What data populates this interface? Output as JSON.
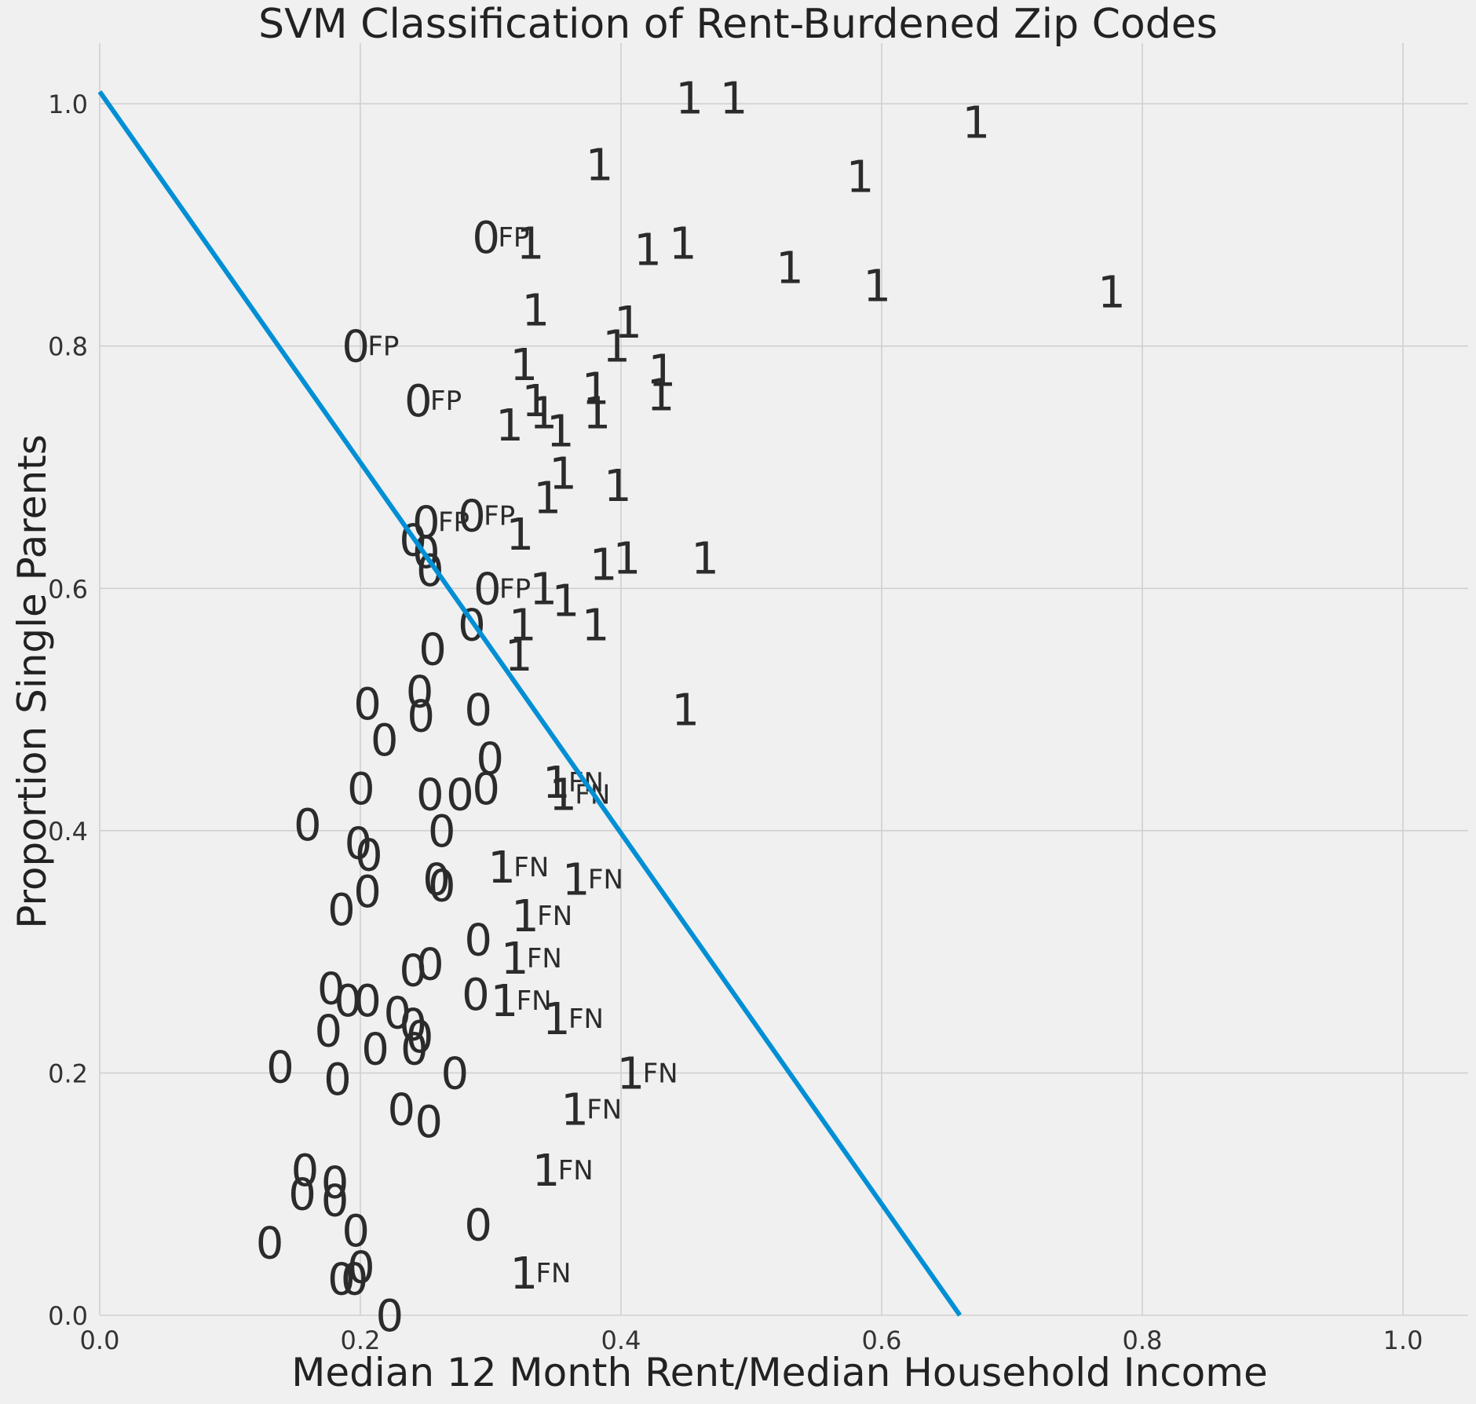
{
  "chart_data": {
    "type": "scatter",
    "title": "SVM Classification of Rent-Burdened Zip Codes",
    "xlabel": "Median 12 Month Rent/Median Household Income",
    "ylabel": "Proportion Single Parents",
    "xlim": [
      0.0,
      1.05
    ],
    "ylim": [
      0.0,
      1.05
    ],
    "xticks": [
      "0.0",
      "0.2",
      "0.4",
      "0.6",
      "0.8",
      "1.0"
    ],
    "yticks": [
      "0.0",
      "0.2",
      "0.4",
      "0.6",
      "0.8",
      "1.0"
    ],
    "grid": true,
    "line_color": "#008fd5",
    "decision_boundary": {
      "x": [
        0.0,
        0.66
      ],
      "y": [
        1.01,
        0.0
      ]
    },
    "points": [
      {
        "x": 0.452,
        "y": 1.005,
        "label": "1",
        "flag": ""
      },
      {
        "x": 0.486,
        "y": 1.005,
        "label": "1",
        "flag": ""
      },
      {
        "x": 0.672,
        "y": 0.985,
        "label": "1",
        "flag": ""
      },
      {
        "x": 0.383,
        "y": 0.95,
        "label": "1",
        "flag": ""
      },
      {
        "x": 0.583,
        "y": 0.94,
        "label": "1",
        "flag": ""
      },
      {
        "x": 0.296,
        "y": 0.89,
        "label": "0",
        "flag": "FP"
      },
      {
        "x": 0.33,
        "y": 0.885,
        "label": "1",
        "flag": ""
      },
      {
        "x": 0.42,
        "y": 0.88,
        "label": "1",
        "flag": ""
      },
      {
        "x": 0.447,
        "y": 0.885,
        "label": "1",
        "flag": ""
      },
      {
        "x": 0.529,
        "y": 0.865,
        "label": "1",
        "flag": ""
      },
      {
        "x": 0.596,
        "y": 0.85,
        "label": "1",
        "flag": ""
      },
      {
        "x": 0.776,
        "y": 0.845,
        "label": "1",
        "flag": ""
      },
      {
        "x": 0.334,
        "y": 0.83,
        "label": "1",
        "flag": ""
      },
      {
        "x": 0.405,
        "y": 0.82,
        "label": "1",
        "flag": ""
      },
      {
        "x": 0.196,
        "y": 0.8,
        "label": "0",
        "flag": "FP"
      },
      {
        "x": 0.396,
        "y": 0.8,
        "label": "1",
        "flag": ""
      },
      {
        "x": 0.325,
        "y": 0.785,
        "label": "1",
        "flag": ""
      },
      {
        "x": 0.431,
        "y": 0.78,
        "label": "1",
        "flag": ""
      },
      {
        "x": 0.244,
        "y": 0.755,
        "label": "0",
        "flag": "FP"
      },
      {
        "x": 0.38,
        "y": 0.765,
        "label": "1",
        "flag": ""
      },
      {
        "x": 0.334,
        "y": 0.755,
        "label": "1",
        "flag": ""
      },
      {
        "x": 0.43,
        "y": 0.76,
        "label": "1",
        "flag": ""
      },
      {
        "x": 0.34,
        "y": 0.745,
        "label": "1",
        "flag": ""
      },
      {
        "x": 0.381,
        "y": 0.745,
        "label": "1",
        "flag": ""
      },
      {
        "x": 0.314,
        "y": 0.735,
        "label": "1",
        "flag": ""
      },
      {
        "x": 0.353,
        "y": 0.73,
        "label": "1",
        "flag": ""
      },
      {
        "x": 0.355,
        "y": 0.695,
        "label": "1",
        "flag": ""
      },
      {
        "x": 0.397,
        "y": 0.685,
        "label": "1",
        "flag": ""
      },
      {
        "x": 0.343,
        "y": 0.675,
        "label": "1",
        "flag": ""
      },
      {
        "x": 0.285,
        "y": 0.66,
        "label": "0",
        "flag": "FP"
      },
      {
        "x": 0.25,
        "y": 0.655,
        "label": "0",
        "flag": "FP"
      },
      {
        "x": 0.322,
        "y": 0.645,
        "label": "1",
        "flag": ""
      },
      {
        "x": 0.24,
        "y": 0.64,
        "label": "0",
        "flag": ""
      },
      {
        "x": 0.25,
        "y": 0.63,
        "label": "0",
        "flag": ""
      },
      {
        "x": 0.253,
        "y": 0.615,
        "label": "0",
        "flag": ""
      },
      {
        "x": 0.386,
        "y": 0.62,
        "label": "1",
        "flag": ""
      },
      {
        "x": 0.404,
        "y": 0.625,
        "label": "1",
        "flag": ""
      },
      {
        "x": 0.464,
        "y": 0.625,
        "label": "1",
        "flag": ""
      },
      {
        "x": 0.297,
        "y": 0.6,
        "label": "0",
        "flag": "FP"
      },
      {
        "x": 0.34,
        "y": 0.6,
        "label": "1",
        "flag": ""
      },
      {
        "x": 0.357,
        "y": 0.59,
        "label": "1",
        "flag": ""
      },
      {
        "x": 0.285,
        "y": 0.57,
        "label": "0",
        "flag": ""
      },
      {
        "x": 0.324,
        "y": 0.57,
        "label": "1",
        "flag": ""
      },
      {
        "x": 0.38,
        "y": 0.57,
        "label": "1",
        "flag": ""
      },
      {
        "x": 0.255,
        "y": 0.55,
        "label": "0",
        "flag": ""
      },
      {
        "x": 0.321,
        "y": 0.545,
        "label": "1",
        "flag": ""
      },
      {
        "x": 0.245,
        "y": 0.515,
        "label": "0",
        "flag": ""
      },
      {
        "x": 0.205,
        "y": 0.505,
        "label": "0",
        "flag": ""
      },
      {
        "x": 0.29,
        "y": 0.5,
        "label": "0",
        "flag": ""
      },
      {
        "x": 0.449,
        "y": 0.5,
        "label": "1",
        "flag": ""
      },
      {
        "x": 0.246,
        "y": 0.495,
        "label": "0",
        "flag": ""
      },
      {
        "x": 0.218,
        "y": 0.475,
        "label": "0",
        "flag": ""
      },
      {
        "x": 0.299,
        "y": 0.46,
        "label": "0",
        "flag": ""
      },
      {
        "x": 0.35,
        "y": 0.44,
        "label": "1",
        "flag": "FN"
      },
      {
        "x": 0.355,
        "y": 0.43,
        "label": "1",
        "flag": "FN"
      },
      {
        "x": 0.2,
        "y": 0.435,
        "label": "0",
        "flag": ""
      },
      {
        "x": 0.253,
        "y": 0.43,
        "label": "0",
        "flag": ""
      },
      {
        "x": 0.276,
        "y": 0.43,
        "label": "0",
        "flag": ""
      },
      {
        "x": 0.296,
        "y": 0.435,
        "label": "0",
        "flag": ""
      },
      {
        "x": 0.159,
        "y": 0.405,
        "label": "0",
        "flag": ""
      },
      {
        "x": 0.262,
        "y": 0.4,
        "label": "0",
        "flag": ""
      },
      {
        "x": 0.198,
        "y": 0.39,
        "label": "0",
        "flag": ""
      },
      {
        "x": 0.206,
        "y": 0.38,
        "label": "0",
        "flag": ""
      },
      {
        "x": 0.308,
        "y": 0.37,
        "label": "1",
        "flag": "FN"
      },
      {
        "x": 0.365,
        "y": 0.36,
        "label": "1",
        "flag": "FN"
      },
      {
        "x": 0.258,
        "y": 0.36,
        "label": "0",
        "flag": ""
      },
      {
        "x": 0.262,
        "y": 0.355,
        "label": "0",
        "flag": ""
      },
      {
        "x": 0.205,
        "y": 0.35,
        "label": "0",
        "flag": ""
      },
      {
        "x": 0.185,
        "y": 0.335,
        "label": "0",
        "flag": ""
      },
      {
        "x": 0.326,
        "y": 0.33,
        "label": "1",
        "flag": "FN"
      },
      {
        "x": 0.29,
        "y": 0.31,
        "label": "0",
        "flag": ""
      },
      {
        "x": 0.318,
        "y": 0.295,
        "label": "1",
        "flag": "FN"
      },
      {
        "x": 0.253,
        "y": 0.29,
        "label": "0",
        "flag": ""
      },
      {
        "x": 0.24,
        "y": 0.285,
        "label": "0",
        "flag": ""
      },
      {
        "x": 0.177,
        "y": 0.27,
        "label": "0",
        "flag": ""
      },
      {
        "x": 0.288,
        "y": 0.265,
        "label": "0",
        "flag": ""
      },
      {
        "x": 0.31,
        "y": 0.26,
        "label": "1",
        "flag": "FN"
      },
      {
        "x": 0.19,
        "y": 0.26,
        "label": "0",
        "flag": ""
      },
      {
        "x": 0.205,
        "y": 0.26,
        "label": "0",
        "flag": ""
      },
      {
        "x": 0.228,
        "y": 0.25,
        "label": "0",
        "flag": ""
      },
      {
        "x": 0.35,
        "y": 0.245,
        "label": "1",
        "flag": "FN"
      },
      {
        "x": 0.24,
        "y": 0.24,
        "label": "0",
        "flag": ""
      },
      {
        "x": 0.245,
        "y": 0.23,
        "label": "0",
        "flag": ""
      },
      {
        "x": 0.175,
        "y": 0.235,
        "label": "0",
        "flag": ""
      },
      {
        "x": 0.241,
        "y": 0.22,
        "label": "0",
        "flag": ""
      },
      {
        "x": 0.211,
        "y": 0.22,
        "label": "0",
        "flag": ""
      },
      {
        "x": 0.138,
        "y": 0.205,
        "label": "0",
        "flag": ""
      },
      {
        "x": 0.272,
        "y": 0.2,
        "label": "0",
        "flag": ""
      },
      {
        "x": 0.407,
        "y": 0.2,
        "label": "1",
        "flag": "FN"
      },
      {
        "x": 0.182,
        "y": 0.195,
        "label": "0",
        "flag": ""
      },
      {
        "x": 0.364,
        "y": 0.17,
        "label": "1",
        "flag": "FN"
      },
      {
        "x": 0.231,
        "y": 0.17,
        "label": "0",
        "flag": ""
      },
      {
        "x": 0.252,
        "y": 0.16,
        "label": "0",
        "flag": ""
      },
      {
        "x": 0.342,
        "y": 0.12,
        "label": "1",
        "flag": "FN"
      },
      {
        "x": 0.157,
        "y": 0.12,
        "label": "0",
        "flag": ""
      },
      {
        "x": 0.18,
        "y": 0.11,
        "label": "0",
        "flag": ""
      },
      {
        "x": 0.155,
        "y": 0.1,
        "label": "0",
        "flag": ""
      },
      {
        "x": 0.18,
        "y": 0.095,
        "label": "0",
        "flag": ""
      },
      {
        "x": 0.29,
        "y": 0.075,
        "label": "0",
        "flag": ""
      },
      {
        "x": 0.196,
        "y": 0.07,
        "label": "0",
        "flag": ""
      },
      {
        "x": 0.13,
        "y": 0.06,
        "label": "0",
        "flag": ""
      },
      {
        "x": 0.2,
        "y": 0.04,
        "label": "0",
        "flag": ""
      },
      {
        "x": 0.325,
        "y": 0.035,
        "label": "1",
        "flag": "FN"
      },
      {
        "x": 0.185,
        "y": 0.03,
        "label": "0",
        "flag": ""
      },
      {
        "x": 0.195,
        "y": 0.03,
        "label": "0",
        "flag": ""
      },
      {
        "x": 0.222,
        "y": 0.0,
        "label": "0",
        "flag": ""
      }
    ]
  }
}
